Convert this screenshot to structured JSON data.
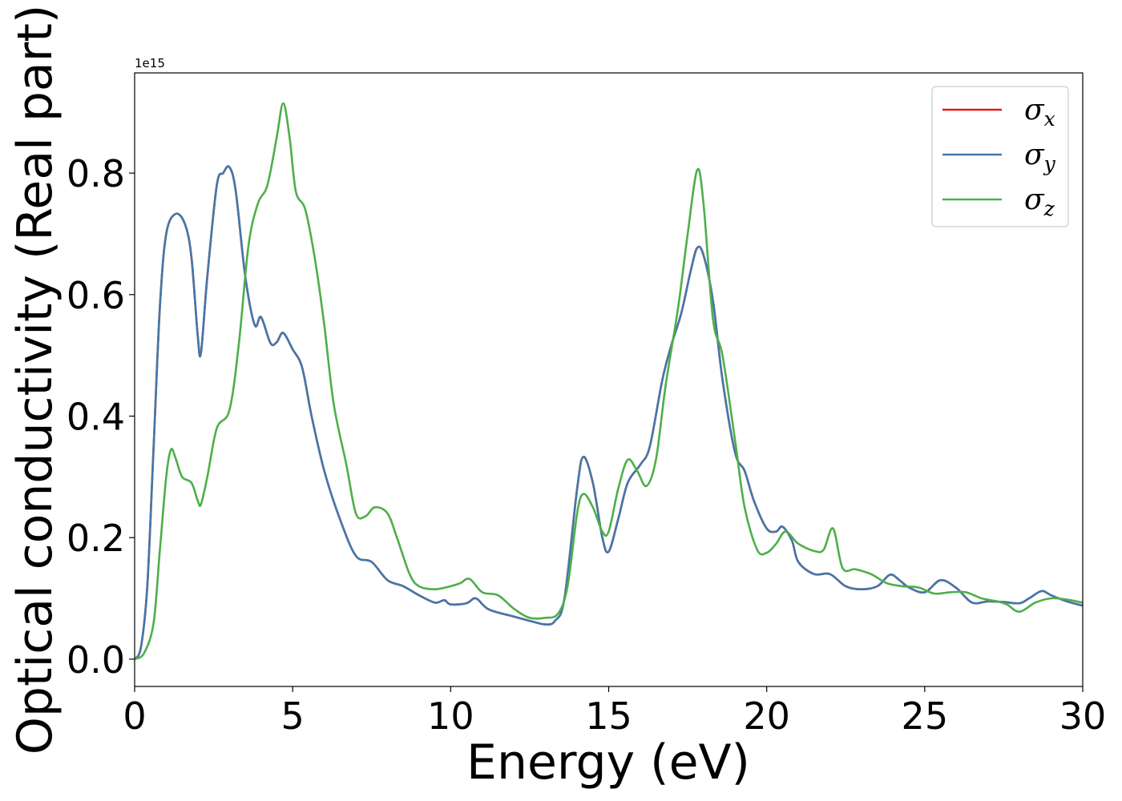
{
  "chart_data": {
    "type": "line",
    "title": "",
    "xlabel": "Energy (eV)",
    "ylabel": "Optical conductivity (Real part)",
    "y_offset_label": "1e15",
    "xlim": [
      0,
      30
    ],
    "ylim": [
      -0.045,
      0.965
    ],
    "x_ticks": [
      0,
      5,
      10,
      15,
      20,
      25,
      30
    ],
    "x_tick_labels": [
      "0",
      "5",
      "10",
      "15",
      "20",
      "25",
      "30"
    ],
    "y_ticks": [
      0.0,
      0.2,
      0.4,
      0.6,
      0.8
    ],
    "y_tick_labels": [
      "0.0",
      "0.2",
      "0.4",
      "0.6",
      "0.8"
    ],
    "grid": false,
    "legend_position": "top-right",
    "series": [
      {
        "name": "σx",
        "symbol": "σ",
        "subscript": "x",
        "color": "#e41a1c",
        "points": [
          [
            0,
            0.0
          ],
          [
            0.2,
            0.02
          ],
          [
            0.4,
            0.12
          ],
          [
            0.6,
            0.35
          ],
          [
            0.8,
            0.58
          ],
          [
            1.0,
            0.7
          ],
          [
            1.3,
            0.733
          ],
          [
            1.6,
            0.715
          ],
          [
            1.8,
            0.66
          ],
          [
            2.0,
            0.53
          ],
          [
            2.1,
            0.505
          ],
          [
            2.3,
            0.63
          ],
          [
            2.6,
            0.78
          ],
          [
            2.8,
            0.8
          ],
          [
            3.0,
            0.81
          ],
          [
            3.2,
            0.77
          ],
          [
            3.5,
            0.63
          ],
          [
            3.8,
            0.55
          ],
          [
            4.0,
            0.563
          ],
          [
            4.3,
            0.52
          ],
          [
            4.5,
            0.522
          ],
          [
            4.7,
            0.537
          ],
          [
            5.0,
            0.51
          ],
          [
            5.3,
            0.48
          ],
          [
            5.6,
            0.4
          ],
          [
            6.0,
            0.31
          ],
          [
            6.5,
            0.23
          ],
          [
            7.0,
            0.17
          ],
          [
            7.5,
            0.16
          ],
          [
            8.0,
            0.13
          ],
          [
            8.5,
            0.12
          ],
          [
            9.0,
            0.105
          ],
          [
            9.5,
            0.093
          ],
          [
            9.8,
            0.097
          ],
          [
            10.0,
            0.09
          ],
          [
            10.5,
            0.092
          ],
          [
            10.8,
            0.1
          ],
          [
            11.2,
            0.082
          ],
          [
            12.0,
            0.07
          ],
          [
            12.5,
            0.063
          ],
          [
            13.0,
            0.057
          ],
          [
            13.3,
            0.063
          ],
          [
            13.6,
            0.1
          ],
          [
            14.0,
            0.28
          ],
          [
            14.2,
            0.333
          ],
          [
            14.5,
            0.29
          ],
          [
            14.8,
            0.2
          ],
          [
            15.0,
            0.177
          ],
          [
            15.3,
            0.23
          ],
          [
            15.6,
            0.29
          ],
          [
            16.0,
            0.32
          ],
          [
            16.3,
            0.35
          ],
          [
            16.7,
            0.46
          ],
          [
            17.0,
            0.52
          ],
          [
            17.3,
            0.57
          ],
          [
            17.6,
            0.64
          ],
          [
            17.8,
            0.677
          ],
          [
            18.0,
            0.665
          ],
          [
            18.3,
            0.59
          ],
          [
            18.6,
            0.46
          ],
          [
            19.0,
            0.34
          ],
          [
            19.3,
            0.31
          ],
          [
            19.6,
            0.26
          ],
          [
            20.0,
            0.215
          ],
          [
            20.3,
            0.21
          ],
          [
            20.5,
            0.218
          ],
          [
            20.8,
            0.195
          ],
          [
            21.0,
            0.16
          ],
          [
            21.5,
            0.14
          ],
          [
            22.0,
            0.14
          ],
          [
            22.5,
            0.12
          ],
          [
            23.0,
            0.115
          ],
          [
            23.5,
            0.12
          ],
          [
            23.9,
            0.139
          ],
          [
            24.2,
            0.13
          ],
          [
            24.5,
            0.118
          ],
          [
            25.0,
            0.11
          ],
          [
            25.5,
            0.13
          ],
          [
            26.0,
            0.117
          ],
          [
            26.5,
            0.093
          ],
          [
            27.0,
            0.095
          ],
          [
            27.5,
            0.094
          ],
          [
            28.0,
            0.092
          ],
          [
            28.3,
            0.1
          ],
          [
            28.7,
            0.112
          ],
          [
            29.0,
            0.105
          ],
          [
            29.5,
            0.095
          ],
          [
            30.0,
            0.088
          ]
        ]
      },
      {
        "name": "σy",
        "symbol": "σ",
        "subscript": "y",
        "color": "#4477aa",
        "points": [
          [
            0,
            0.0
          ],
          [
            0.2,
            0.02
          ],
          [
            0.4,
            0.12
          ],
          [
            0.6,
            0.35
          ],
          [
            0.8,
            0.58
          ],
          [
            1.0,
            0.7
          ],
          [
            1.3,
            0.733
          ],
          [
            1.6,
            0.715
          ],
          [
            1.8,
            0.66
          ],
          [
            2.0,
            0.53
          ],
          [
            2.1,
            0.505
          ],
          [
            2.3,
            0.63
          ],
          [
            2.6,
            0.78
          ],
          [
            2.8,
            0.8
          ],
          [
            3.0,
            0.81
          ],
          [
            3.2,
            0.77
          ],
          [
            3.5,
            0.63
          ],
          [
            3.8,
            0.55
          ],
          [
            4.0,
            0.563
          ],
          [
            4.3,
            0.52
          ],
          [
            4.5,
            0.522
          ],
          [
            4.7,
            0.537
          ],
          [
            5.0,
            0.51
          ],
          [
            5.3,
            0.48
          ],
          [
            5.6,
            0.4
          ],
          [
            6.0,
            0.31
          ],
          [
            6.5,
            0.23
          ],
          [
            7.0,
            0.17
          ],
          [
            7.5,
            0.16
          ],
          [
            8.0,
            0.13
          ],
          [
            8.5,
            0.12
          ],
          [
            9.0,
            0.105
          ],
          [
            9.5,
            0.093
          ],
          [
            9.8,
            0.097
          ],
          [
            10.0,
            0.09
          ],
          [
            10.5,
            0.092
          ],
          [
            10.8,
            0.1
          ],
          [
            11.2,
            0.082
          ],
          [
            12.0,
            0.07
          ],
          [
            12.5,
            0.063
          ],
          [
            13.0,
            0.057
          ],
          [
            13.3,
            0.063
          ],
          [
            13.6,
            0.1
          ],
          [
            14.0,
            0.28
          ],
          [
            14.2,
            0.333
          ],
          [
            14.5,
            0.29
          ],
          [
            14.8,
            0.2
          ],
          [
            15.0,
            0.177
          ],
          [
            15.3,
            0.23
          ],
          [
            15.6,
            0.29
          ],
          [
            16.0,
            0.32
          ],
          [
            16.3,
            0.35
          ],
          [
            16.7,
            0.46
          ],
          [
            17.0,
            0.52
          ],
          [
            17.3,
            0.57
          ],
          [
            17.6,
            0.64
          ],
          [
            17.8,
            0.677
          ],
          [
            18.0,
            0.665
          ],
          [
            18.3,
            0.59
          ],
          [
            18.6,
            0.46
          ],
          [
            19.0,
            0.34
          ],
          [
            19.3,
            0.31
          ],
          [
            19.6,
            0.26
          ],
          [
            20.0,
            0.215
          ],
          [
            20.3,
            0.21
          ],
          [
            20.5,
            0.218
          ],
          [
            20.8,
            0.195
          ],
          [
            21.0,
            0.16
          ],
          [
            21.5,
            0.14
          ],
          [
            22.0,
            0.14
          ],
          [
            22.5,
            0.12
          ],
          [
            23.0,
            0.115
          ],
          [
            23.5,
            0.12
          ],
          [
            23.9,
            0.139
          ],
          [
            24.2,
            0.13
          ],
          [
            24.5,
            0.118
          ],
          [
            25.0,
            0.11
          ],
          [
            25.5,
            0.13
          ],
          [
            26.0,
            0.117
          ],
          [
            26.5,
            0.093
          ],
          [
            27.0,
            0.095
          ],
          [
            27.5,
            0.094
          ],
          [
            28.0,
            0.092
          ],
          [
            28.3,
            0.1
          ],
          [
            28.7,
            0.112
          ],
          [
            29.0,
            0.105
          ],
          [
            29.5,
            0.095
          ],
          [
            30.0,
            0.088
          ]
        ]
      },
      {
        "name": "σz",
        "symbol": "σ",
        "subscript": "z",
        "color": "#4daf4a",
        "points": [
          [
            0,
            0.0
          ],
          [
            0.3,
            0.01
          ],
          [
            0.6,
            0.06
          ],
          [
            0.8,
            0.18
          ],
          [
            1.0,
            0.3
          ],
          [
            1.15,
            0.345
          ],
          [
            1.3,
            0.33
          ],
          [
            1.5,
            0.3
          ],
          [
            1.8,
            0.29
          ],
          [
            2.0,
            0.26
          ],
          [
            2.1,
            0.255
          ],
          [
            2.3,
            0.3
          ],
          [
            2.6,
            0.38
          ],
          [
            3.0,
            0.41
          ],
          [
            3.3,
            0.52
          ],
          [
            3.6,
            0.68
          ],
          [
            3.9,
            0.75
          ],
          [
            4.2,
            0.78
          ],
          [
            4.5,
            0.86
          ],
          [
            4.7,
            0.915
          ],
          [
            4.9,
            0.86
          ],
          [
            5.1,
            0.77
          ],
          [
            5.4,
            0.74
          ],
          [
            5.7,
            0.66
          ],
          [
            6.0,
            0.55
          ],
          [
            6.3,
            0.42
          ],
          [
            6.7,
            0.32
          ],
          [
            7.0,
            0.24
          ],
          [
            7.3,
            0.235
          ],
          [
            7.6,
            0.25
          ],
          [
            8.0,
            0.24
          ],
          [
            8.3,
            0.2
          ],
          [
            8.7,
            0.14
          ],
          [
            9.0,
            0.12
          ],
          [
            9.5,
            0.115
          ],
          [
            10.0,
            0.12
          ],
          [
            10.3,
            0.125
          ],
          [
            10.6,
            0.132
          ],
          [
            11.0,
            0.11
          ],
          [
            11.5,
            0.105
          ],
          [
            12.0,
            0.083
          ],
          [
            12.5,
            0.068
          ],
          [
            13.0,
            0.068
          ],
          [
            13.4,
            0.075
          ],
          [
            13.7,
            0.12
          ],
          [
            14.0,
            0.24
          ],
          [
            14.2,
            0.272
          ],
          [
            14.5,
            0.25
          ],
          [
            14.8,
            0.21
          ],
          [
            15.0,
            0.21
          ],
          [
            15.3,
            0.28
          ],
          [
            15.6,
            0.328
          ],
          [
            15.9,
            0.31
          ],
          [
            16.2,
            0.285
          ],
          [
            16.5,
            0.33
          ],
          [
            16.8,
            0.45
          ],
          [
            17.2,
            0.58
          ],
          [
            17.5,
            0.7
          ],
          [
            17.8,
            0.805
          ],
          [
            18.0,
            0.75
          ],
          [
            18.3,
            0.56
          ],
          [
            18.6,
            0.5
          ],
          [
            19.0,
            0.36
          ],
          [
            19.3,
            0.25
          ],
          [
            19.7,
            0.18
          ],
          [
            20.0,
            0.175
          ],
          [
            20.3,
            0.19
          ],
          [
            20.6,
            0.21
          ],
          [
            21.0,
            0.19
          ],
          [
            21.5,
            0.178
          ],
          [
            21.8,
            0.18
          ],
          [
            22.1,
            0.215
          ],
          [
            22.4,
            0.15
          ],
          [
            22.8,
            0.148
          ],
          [
            23.3,
            0.14
          ],
          [
            23.8,
            0.125
          ],
          [
            24.3,
            0.12
          ],
          [
            24.8,
            0.118
          ],
          [
            25.3,
            0.108
          ],
          [
            25.8,
            0.11
          ],
          [
            26.3,
            0.11
          ],
          [
            26.8,
            0.1
          ],
          [
            27.3,
            0.095
          ],
          [
            27.6,
            0.09
          ],
          [
            28.0,
            0.078
          ],
          [
            28.5,
            0.093
          ],
          [
            29.0,
            0.1
          ],
          [
            29.5,
            0.098
          ],
          [
            30.0,
            0.093
          ]
        ]
      }
    ]
  }
}
